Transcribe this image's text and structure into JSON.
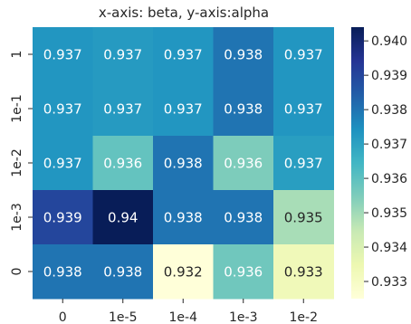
{
  "chart_data": {
    "type": "heatmap",
    "title": "x-axis: beta, y-axis:alpha",
    "x_categories": [
      "0",
      "1e-5",
      "1e-4",
      "1e-3",
      "1e-2"
    ],
    "y_categories": [
      "1",
      "1e-1",
      "1e-2",
      "1e-3",
      "0"
    ],
    "values": [
      [
        0.9373,
        0.9372,
        0.9373,
        0.938,
        0.9373
      ],
      [
        0.9373,
        0.9372,
        0.9373,
        0.938,
        0.9373
      ],
      [
        0.9373,
        0.9359,
        0.938,
        0.9355,
        0.9371
      ],
      [
        0.939,
        0.9404,
        0.938,
        0.938,
        0.9349
      ],
      [
        0.938,
        0.938,
        0.9325,
        0.9357,
        0.9333
      ]
    ],
    "cell_labels": [
      [
        "0.937",
        "0.937",
        "0.937",
        "0.938",
        "0.937"
      ],
      [
        "0.937",
        "0.937",
        "0.937",
        "0.938",
        "0.937"
      ],
      [
        "0.937",
        "0.936",
        "0.938",
        "0.936",
        "0.937"
      ],
      [
        "0.939",
        "0.94",
        "0.938",
        "0.938",
        "0.935"
      ],
      [
        "0.938",
        "0.938",
        "0.932",
        "0.936",
        "0.933"
      ]
    ],
    "colorbar": {
      "min": 0.9325,
      "max": 0.9404,
      "ticks": [
        0.933,
        0.934,
        0.935,
        0.936,
        0.937,
        0.938,
        0.939,
        0.94
      ],
      "tick_labels": [
        "0.933",
        "0.934",
        "0.935",
        "0.936",
        "0.937",
        "0.938",
        "0.939",
        "0.940"
      ]
    },
    "colormap": "YlGnBu",
    "colormap_stops": [
      "#ffffd9",
      "#edf8b1",
      "#c7e9b4",
      "#7fcdbb",
      "#41b6c4",
      "#1d91c0",
      "#225ea8",
      "#253494",
      "#081d58"
    ],
    "colorbar_position": "right",
    "grid": false
  }
}
